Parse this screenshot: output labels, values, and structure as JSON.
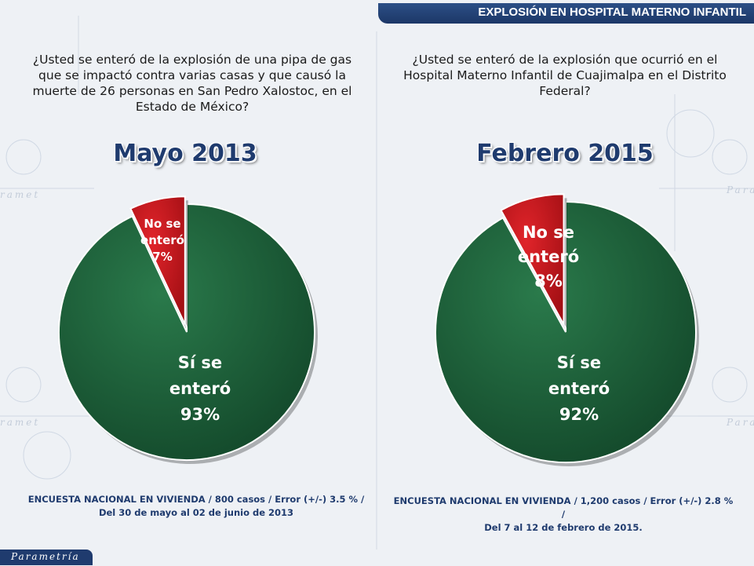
{
  "header": {
    "title": "EXPLOSIÓN EN HOSPITAL MATERNO INFANTIL"
  },
  "brand": {
    "name": "Parametría"
  },
  "colors": {
    "yes": "#1b5e37",
    "no": "#c8161c",
    "accent": "#1f3b6e"
  },
  "panels": [
    {
      "question": "¿Usted se enteró de la explosión de una pipa de gas que se impactó contra varias casas y que causó la muerte de 26 personas en San Pedro Xalostoc, en el Estado de México?",
      "period": "Mayo 2013",
      "footnote_line1": "ENCUESTA NACIONAL EN VIVIENDA / 800 casos / Error (+/-) 3.5 % /",
      "footnote_line2": "Del 30 de mayo al 02 de junio de 2013"
    },
    {
      "question": "¿Usted se enteró de la explosión que ocurrió en el Hospital Materno Infantil de Cuajimalpa en el Distrito Federal?",
      "period": "Febrero 2015",
      "footnote_line1": "ENCUESTA NACIONAL EN VIVIENDA / 1,200 casos / Error (+/-) 2.8 % /",
      "footnote_line2": "Del 7 al 12 de febrero de 2015."
    }
  ],
  "chart_data": [
    {
      "type": "pie",
      "title": "Mayo 2013",
      "labels": [
        "Sí se enteró",
        "No se enteró"
      ],
      "values": [
        93,
        7
      ],
      "value_labels": [
        "93%",
        "7%"
      ],
      "label_lines": [
        [
          "Sí se",
          "enteró",
          "93%"
        ],
        [
          "No se",
          "enteró",
          "7%"
        ]
      ],
      "colors": [
        "#1b5e37",
        "#c8161c"
      ]
    },
    {
      "type": "pie",
      "title": "Febrero 2015",
      "labels": [
        "Sí se enteró",
        "No se enteró"
      ],
      "values": [
        92,
        8
      ],
      "value_labels": [
        "92%",
        "8%"
      ],
      "label_lines": [
        [
          "Sí se",
          "enteró",
          "92%"
        ],
        [
          "No se",
          "enteró",
          "8%"
        ]
      ],
      "colors": [
        "#1b5e37",
        "#c8161c"
      ]
    }
  ]
}
